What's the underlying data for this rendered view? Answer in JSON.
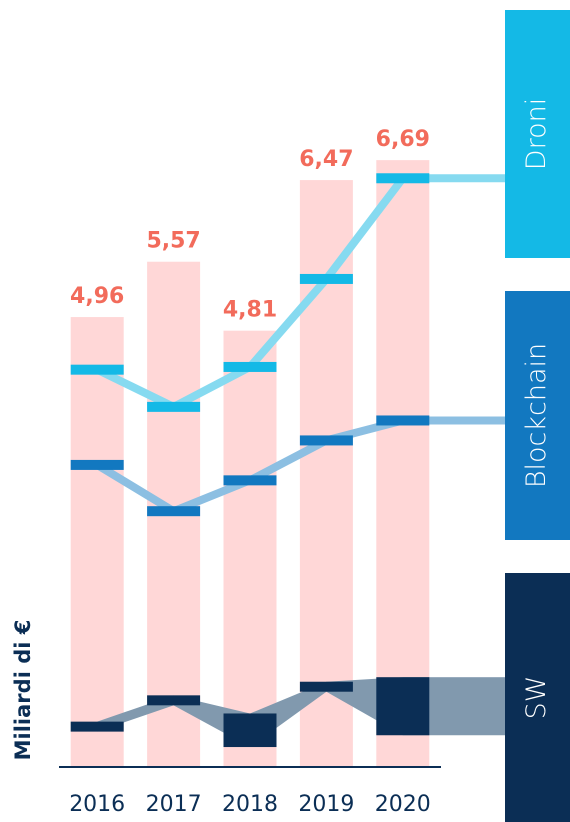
{
  "chart_data": {
    "type": "bar",
    "y_label": "Miliardi di €",
    "categories": [
      "2016",
      "2017",
      "2018",
      "2019",
      "2020"
    ],
    "values": [
      4.96,
      5.57,
      4.81,
      6.47,
      6.69
    ],
    "value_labels": [
      "4,96",
      "5,57",
      "4,81",
      "6,47",
      "6,69"
    ],
    "color": "#ffd7d7",
    "label_color": "#f26b5b",
    "ylim": [
      0,
      7
    ],
    "series": [
      {
        "name": "Droni",
        "color": "#14b9e6",
        "line_color": "#86daf0",
        "values": [
          4.38,
          3.97,
          4.41,
          5.38,
          6.49
        ]
      },
      {
        "name": "Blockchain",
        "color": "#1278c0",
        "line_color": "#8cbfe2",
        "values": [
          3.33,
          2.82,
          3.16,
          3.6,
          3.82
        ]
      },
      {
        "name": "SW",
        "color": "#0b2e55",
        "line_color": "#8199ae",
        "low": [
          0.39,
          0.68,
          0.22,
          0.83,
          0.35
        ],
        "high": [
          0.5,
          0.79,
          0.59,
          0.94,
          0.99
        ]
      }
    ]
  }
}
